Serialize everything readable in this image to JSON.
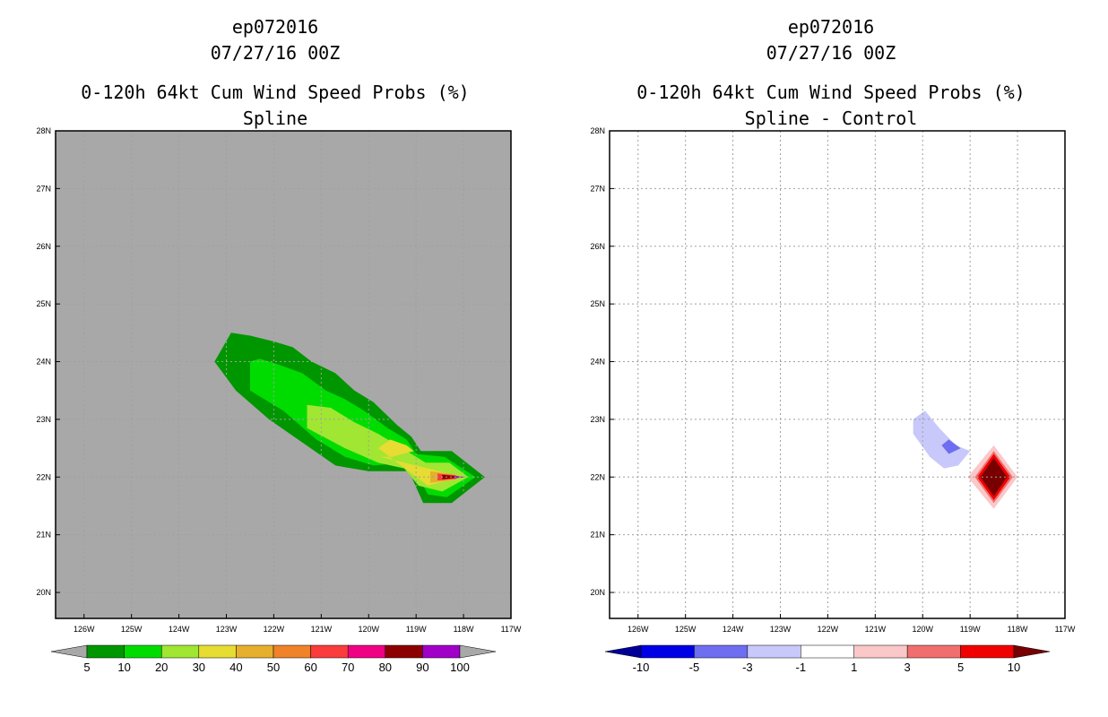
{
  "left": {
    "storm_id": "ep072016",
    "date": "07/27/16 00Z",
    "product": "0-120h 64kt Cum Wind Speed Probs (%)",
    "subtitle": "Spline"
  },
  "right": {
    "storm_id": "ep072016",
    "date": "07/27/16 00Z",
    "product": "0-120h 64kt Cum Wind Speed Probs (%)",
    "subtitle": "Spline - Control"
  },
  "chart_data": [
    {
      "type": "heatmap",
      "title": "0-120h 64kt Cum Wind Speed Probs (%)",
      "subtitle": "Spline",
      "background_color": "#a8a8a8",
      "grid": true,
      "xlim": [
        -126.6,
        -117.0
      ],
      "ylim": [
        19.55,
        28.0
      ],
      "x_ticks": [
        -126,
        -125,
        -124,
        -123,
        -122,
        -121,
        -120,
        -119,
        -118,
        -117
      ],
      "x_tick_labels": [
        "126W",
        "125W",
        "124W",
        "123W",
        "122W",
        "121W",
        "120W",
        "119W",
        "118W",
        "117W"
      ],
      "y_ticks": [
        20,
        21,
        22,
        23,
        24,
        25,
        26,
        27,
        28
      ],
      "y_tick_labels": [
        "20N",
        "21N",
        "22N",
        "23N",
        "24N",
        "25N",
        "26N",
        "27N",
        "28N"
      ],
      "colorbar": {
        "labels": [
          "5",
          "10",
          "20",
          "30",
          "40",
          "50",
          "60",
          "70",
          "80",
          "90",
          "100"
        ],
        "colors": [
          "#009600",
          "#00dc00",
          "#a0e632",
          "#e6dc32",
          "#e6af2d",
          "#f08228",
          "#fa3c3c",
          "#f00082",
          "#8c0000",
          "#a000c8"
        ],
        "left_extend_color": "#a8a8a8",
        "right_extend_color": "#a8a8a8"
      },
      "contours": [
        {
          "level": 5,
          "color": "#009600",
          "polygon": [
            [
              -123.25,
              24.0
            ],
            [
              -122.9,
              24.5
            ],
            [
              -122.5,
              24.45
            ],
            [
              -122.0,
              24.35
            ],
            [
              -121.6,
              24.25
            ],
            [
              -121.2,
              24.0
            ],
            [
              -120.7,
              23.8
            ],
            [
              -120.3,
              23.5
            ],
            [
              -119.9,
              23.3
            ],
            [
              -119.4,
              22.9
            ],
            [
              -119.1,
              22.7
            ],
            [
              -118.9,
              22.45
            ],
            [
              -118.25,
              22.45
            ],
            [
              -117.55,
              22.0
            ],
            [
              -118.25,
              21.55
            ],
            [
              -118.85,
              21.55
            ],
            [
              -119.15,
              22.1
            ],
            [
              -120.0,
              22.1
            ],
            [
              -120.7,
              22.2
            ],
            [
              -121.4,
              22.6
            ],
            [
              -122.1,
              23.0
            ],
            [
              -122.8,
              23.5
            ]
          ]
        },
        {
          "level": 10,
          "color": "#00dc00",
          "polygon": [
            [
              -122.5,
              24.0
            ],
            [
              -122.3,
              24.05
            ],
            [
              -121.9,
              23.95
            ],
            [
              -121.4,
              23.8
            ],
            [
              -120.9,
              23.5
            ],
            [
              -120.5,
              23.35
            ],
            [
              -120.1,
              23.15
            ],
            [
              -119.6,
              22.85
            ],
            [
              -119.2,
              22.65
            ],
            [
              -119.0,
              22.4
            ],
            [
              -118.4,
              22.35
            ],
            [
              -117.75,
              22.0
            ],
            [
              -118.35,
              21.65
            ],
            [
              -118.75,
              21.7
            ],
            [
              -118.95,
              22.0
            ],
            [
              -119.2,
              22.25
            ],
            [
              -119.9,
              22.2
            ],
            [
              -120.5,
              22.35
            ],
            [
              -121.1,
              22.65
            ],
            [
              -121.8,
              23.15
            ],
            [
              -122.5,
              23.5
            ]
          ]
        },
        {
          "level": 20,
          "color": "#a0e632",
          "polygon": [
            [
              -121.3,
              23.25
            ],
            [
              -120.8,
              23.2
            ],
            [
              -120.3,
              22.95
            ],
            [
              -119.8,
              22.75
            ],
            [
              -119.4,
              22.55
            ],
            [
              -119.1,
              22.4
            ],
            [
              -118.8,
              22.25
            ],
            [
              -118.3,
              22.25
            ],
            [
              -117.9,
              22.0
            ],
            [
              -118.45,
              21.75
            ],
            [
              -118.95,
              21.85
            ],
            [
              -119.25,
              22.15
            ],
            [
              -119.8,
              22.25
            ],
            [
              -120.5,
              22.5
            ],
            [
              -121.3,
              22.85
            ]
          ]
        },
        {
          "level": 30,
          "color": "#e6dc32",
          "polygon": [
            [
              -119.8,
              22.5
            ],
            [
              -119.55,
              22.65
            ],
            [
              -119.2,
              22.55
            ],
            [
              -119.05,
              22.45
            ],
            [
              -119.5,
              22.35
            ],
            [
              -119.75,
              22.35
            ],
            [
              -118.75,
              22.15
            ],
            [
              -118.05,
              22.0
            ],
            [
              -118.75,
              21.85
            ]
          ]
        },
        {
          "level": 40,
          "color": "#e6af2d",
          "polygon": [
            [
              -118.7,
              22.1
            ],
            [
              -118.2,
              22.05
            ],
            [
              -118.1,
              22.0
            ],
            [
              -118.2,
              21.95
            ],
            [
              -118.7,
              21.9
            ]
          ]
        },
        {
          "level": 60,
          "color": "#fa3c3c",
          "polygon": [
            [
              -118.55,
              22.06
            ],
            [
              -118.15,
              22.03
            ],
            [
              -118.15,
              21.97
            ],
            [
              -118.55,
              21.94
            ]
          ]
        },
        {
          "level": 80,
          "color": "#8c0000",
          "polygon": [
            [
              -118.45,
              22.04
            ],
            [
              -118.1,
              22.01
            ],
            [
              -118.1,
              21.99
            ],
            [
              -118.45,
              21.96
            ]
          ]
        },
        {
          "level": 90,
          "color": "#a000c8",
          "polygon": [
            [
              -118.2,
              22.02
            ],
            [
              -117.95,
              22.0
            ],
            [
              -118.2,
              21.98
            ]
          ]
        }
      ]
    },
    {
      "type": "heatmap",
      "title": "0-120h 64kt Cum Wind Speed Probs (%)",
      "subtitle": "Spline - Control",
      "background_color": "#ffffff",
      "grid": true,
      "xlim": [
        -126.6,
        -117.0
      ],
      "ylim": [
        19.55,
        28.0
      ],
      "x_ticks": [
        -126,
        -125,
        -124,
        -123,
        -122,
        -121,
        -120,
        -119,
        -118,
        -117
      ],
      "x_tick_labels": [
        "126W",
        "125W",
        "124W",
        "123W",
        "122W",
        "121W",
        "120W",
        "119W",
        "118W",
        "117W"
      ],
      "y_ticks": [
        20,
        21,
        22,
        23,
        24,
        25,
        26,
        27,
        28
      ],
      "y_tick_labels": [
        "20N",
        "21N",
        "22N",
        "23N",
        "24N",
        "25N",
        "26N",
        "27N",
        "28N"
      ],
      "colorbar": {
        "labels": [
          "-10",
          "-5",
          "-3",
          "-1",
          "1",
          "3",
          "5",
          "10"
        ],
        "colors": [
          "#0000e6",
          "#6e6ef0",
          "#c8c8fa",
          "#ffffff",
          "#fac8c8",
          "#f06e6e",
          "#f00000"
        ],
        "left_extend_color": "#000096",
        "right_extend_color": "#780000"
      },
      "contours": [
        {
          "level": -1,
          "color": "#c8c8fa",
          "polygon": [
            [
              -120.2,
              23.0
            ],
            [
              -119.95,
              23.15
            ],
            [
              -119.65,
              22.85
            ],
            [
              -119.3,
              22.55
            ],
            [
              -119.0,
              22.45
            ],
            [
              -119.25,
              22.2
            ],
            [
              -119.55,
              22.15
            ],
            [
              -119.85,
              22.35
            ],
            [
              -120.2,
              22.75
            ]
          ]
        },
        {
          "level": -3,
          "color": "#6e6ef0",
          "polygon": [
            [
              -119.6,
              22.55
            ],
            [
              -119.45,
              22.65
            ],
            [
              -119.2,
              22.5
            ],
            [
              -119.45,
              22.4
            ]
          ]
        },
        {
          "level": 1,
          "color": "#fac8c8",
          "polygon": [
            [
              -118.5,
              22.55
            ],
            [
              -118.0,
              22.0
            ],
            [
              -118.5,
              21.45
            ],
            [
              -119.05,
              22.0
            ]
          ]
        },
        {
          "level": 3,
          "color": "#f06e6e",
          "polygon": [
            [
              -118.5,
              22.45
            ],
            [
              -118.1,
              22.0
            ],
            [
              -118.5,
              21.55
            ],
            [
              -118.9,
              22.0
            ]
          ]
        },
        {
          "level": 5,
          "color": "#f00000",
          "polygon": [
            [
              -118.5,
              22.4
            ],
            [
              -118.15,
              22.0
            ],
            [
              -118.5,
              21.6
            ],
            [
              -118.85,
              22.0
            ]
          ]
        },
        {
          "level": 10,
          "color": "#780000",
          "polygon": [
            [
              -118.5,
              22.33
            ],
            [
              -118.22,
              22.0
            ],
            [
              -118.5,
              21.67
            ],
            [
              -118.78,
              22.0
            ]
          ]
        }
      ]
    }
  ]
}
